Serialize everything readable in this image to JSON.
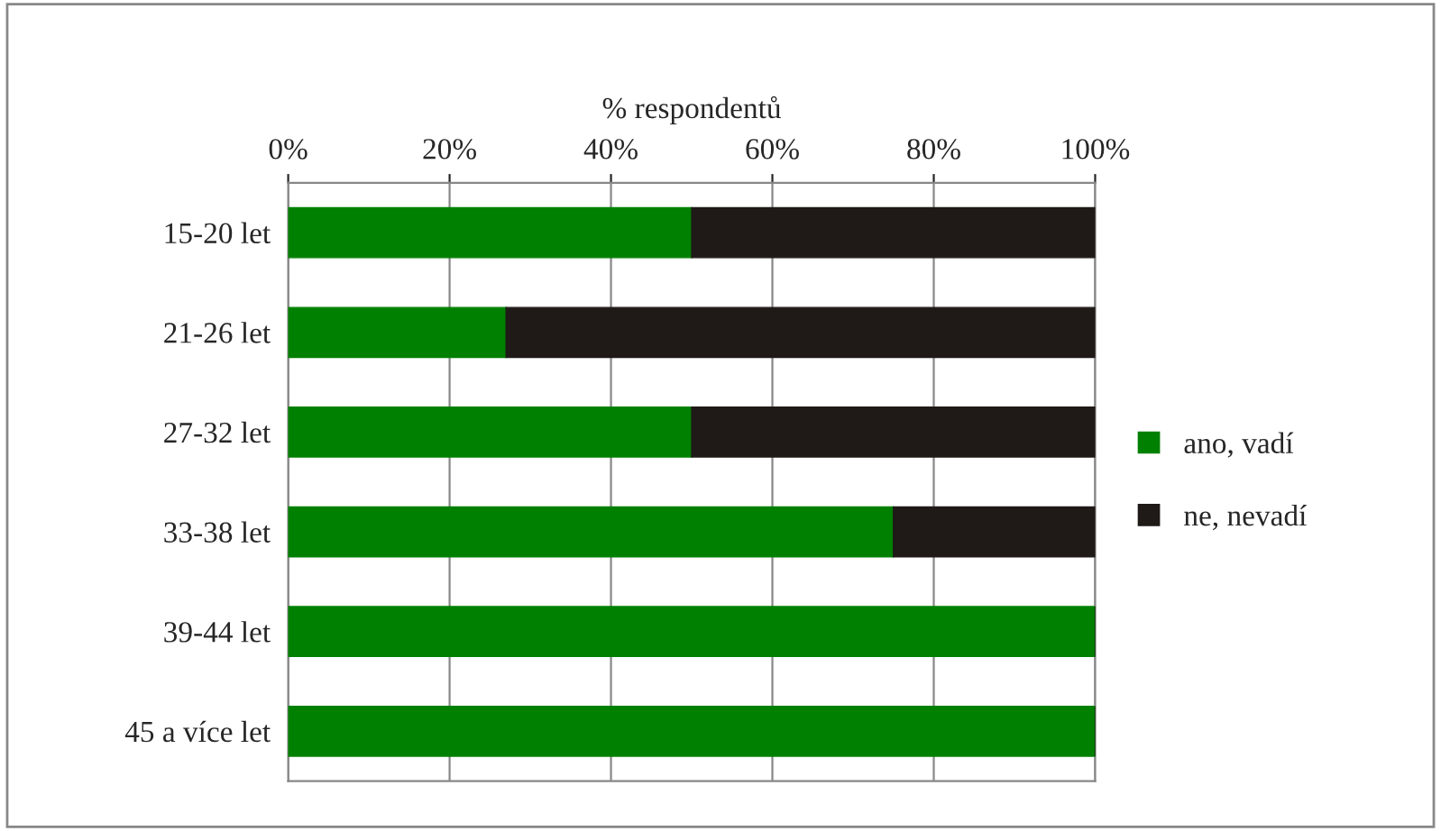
{
  "chart_data": {
    "type": "bar",
    "orientation": "horizontal",
    "stacked": true,
    "xlabel": "% respondentů",
    "categories": [
      "15-20 let",
      "21-26 let",
      "27-32 let",
      "33-38 let",
      "39-44 let",
      "45 a více let"
    ],
    "series": [
      {
        "name": "ano, vadí",
        "color": "#008000",
        "values": [
          50,
          27,
          50,
          75,
          100,
          100
        ]
      },
      {
        "name": "ne, nevadí",
        "color": "#1f1a17",
        "values": [
          50,
          73,
          50,
          25,
          0,
          0
        ]
      }
    ],
    "xlim": [
      0,
      100
    ],
    "xticks": [
      {
        "value": 0,
        "label": "0%"
      },
      {
        "value": 20,
        "label": "20%"
      },
      {
        "value": 40,
        "label": "40%"
      },
      {
        "value": 60,
        "label": "60%"
      },
      {
        "value": 80,
        "label": "80%"
      },
      {
        "value": 100,
        "label": "100%"
      }
    ],
    "grid": "x",
    "legend": "right"
  }
}
